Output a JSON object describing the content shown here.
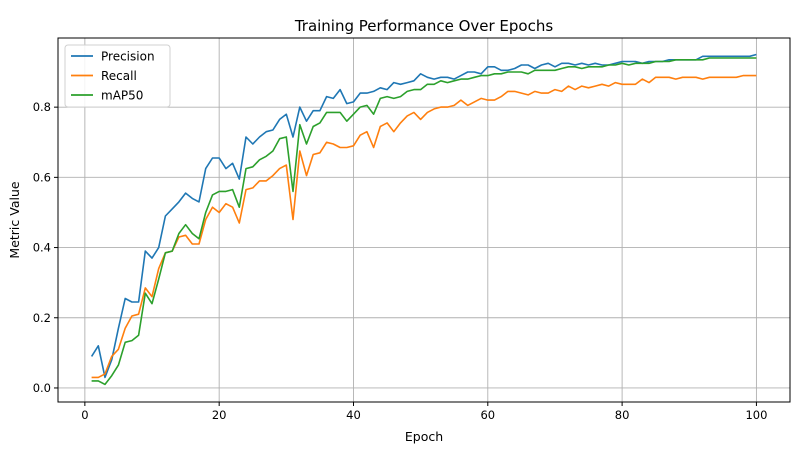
{
  "chart_data": {
    "type": "line",
    "title": "Training Performance Over Epochs",
    "xlabel": "Epoch",
    "ylabel": "Metric Value",
    "xlim": [
      -4,
      105
    ],
    "ylim": [
      -0.04,
      0.997
    ],
    "xticks": [
      0,
      20,
      40,
      60,
      80,
      100
    ],
    "yticks": [
      0.0,
      0.2,
      0.4,
      0.6,
      0.8
    ],
    "ytick_labels": [
      "0.0",
      "0.2",
      "0.4",
      "0.6",
      "0.8"
    ],
    "grid": true,
    "legend_position": "top-left",
    "x_start": 1,
    "series": [
      {
        "name": "Precision",
        "color": "#1f77b4",
        "values": [
          0.09,
          0.12,
          0.03,
          0.08,
          0.17,
          0.255,
          0.245,
          0.245,
          0.39,
          0.37,
          0.4,
          0.49,
          0.51,
          0.53,
          0.555,
          0.54,
          0.53,
          0.625,
          0.655,
          0.655,
          0.625,
          0.64,
          0.595,
          0.715,
          0.695,
          0.715,
          0.73,
          0.735,
          0.765,
          0.78,
          0.715,
          0.8,
          0.76,
          0.79,
          0.79,
          0.83,
          0.825,
          0.85,
          0.81,
          0.815,
          0.84,
          0.84,
          0.845,
          0.855,
          0.85,
          0.87,
          0.865,
          0.87,
          0.875,
          0.895,
          0.885,
          0.88,
          0.885,
          0.885,
          0.88,
          0.89,
          0.9,
          0.9,
          0.895,
          0.915,
          0.915,
          0.905,
          0.905,
          0.91,
          0.92,
          0.92,
          0.91,
          0.92,
          0.925,
          0.915,
          0.925,
          0.925,
          0.92,
          0.925,
          0.92,
          0.925,
          0.92,
          0.92,
          0.925,
          0.93,
          0.93,
          0.93,
          0.925,
          0.93,
          0.93,
          0.93,
          0.935,
          0.935,
          0.935,
          0.935,
          0.935,
          0.945,
          0.945,
          0.945,
          0.945,
          0.945,
          0.945,
          0.945,
          0.945,
          0.95
        ]
      },
      {
        "name": "Recall",
        "color": "#ff7f0e",
        "values": [
          0.03,
          0.03,
          0.04,
          0.09,
          0.11,
          0.17,
          0.205,
          0.21,
          0.285,
          0.26,
          0.34,
          0.385,
          0.39,
          0.43,
          0.435,
          0.41,
          0.41,
          0.48,
          0.515,
          0.5,
          0.525,
          0.515,
          0.47,
          0.565,
          0.57,
          0.59,
          0.59,
          0.605,
          0.625,
          0.635,
          0.48,
          0.675,
          0.605,
          0.665,
          0.67,
          0.7,
          0.695,
          0.685,
          0.685,
          0.69,
          0.72,
          0.73,
          0.685,
          0.745,
          0.755,
          0.73,
          0.755,
          0.775,
          0.785,
          0.765,
          0.785,
          0.795,
          0.8,
          0.8,
          0.805,
          0.82,
          0.805,
          0.815,
          0.825,
          0.82,
          0.82,
          0.83,
          0.845,
          0.845,
          0.84,
          0.835,
          0.845,
          0.84,
          0.84,
          0.85,
          0.845,
          0.86,
          0.85,
          0.86,
          0.855,
          0.86,
          0.865,
          0.86,
          0.87,
          0.865,
          0.865,
          0.865,
          0.88,
          0.87,
          0.885,
          0.885,
          0.885,
          0.88,
          0.885,
          0.885,
          0.885,
          0.88,
          0.885,
          0.885,
          0.885,
          0.885,
          0.885,
          0.89,
          0.89,
          0.89
        ]
      },
      {
        "name": "mAP50",
        "color": "#2ca02c",
        "values": [
          0.02,
          0.02,
          0.01,
          0.035,
          0.065,
          0.13,
          0.135,
          0.15,
          0.27,
          0.24,
          0.31,
          0.385,
          0.39,
          0.44,
          0.465,
          0.44,
          0.425,
          0.5,
          0.55,
          0.56,
          0.56,
          0.565,
          0.515,
          0.625,
          0.63,
          0.65,
          0.66,
          0.675,
          0.71,
          0.715,
          0.56,
          0.75,
          0.695,
          0.745,
          0.755,
          0.785,
          0.785,
          0.785,
          0.76,
          0.78,
          0.8,
          0.805,
          0.78,
          0.825,
          0.83,
          0.825,
          0.83,
          0.845,
          0.85,
          0.85,
          0.865,
          0.865,
          0.875,
          0.87,
          0.875,
          0.88,
          0.88,
          0.885,
          0.89,
          0.89,
          0.895,
          0.895,
          0.9,
          0.9,
          0.9,
          0.895,
          0.905,
          0.905,
          0.905,
          0.905,
          0.91,
          0.915,
          0.915,
          0.91,
          0.915,
          0.915,
          0.915,
          0.92,
          0.92,
          0.925,
          0.92,
          0.925,
          0.925,
          0.925,
          0.93,
          0.93,
          0.93,
          0.935,
          0.935,
          0.935,
          0.935,
          0.935,
          0.94,
          0.94,
          0.94,
          0.94,
          0.94,
          0.94,
          0.94,
          0.94
        ]
      }
    ]
  }
}
